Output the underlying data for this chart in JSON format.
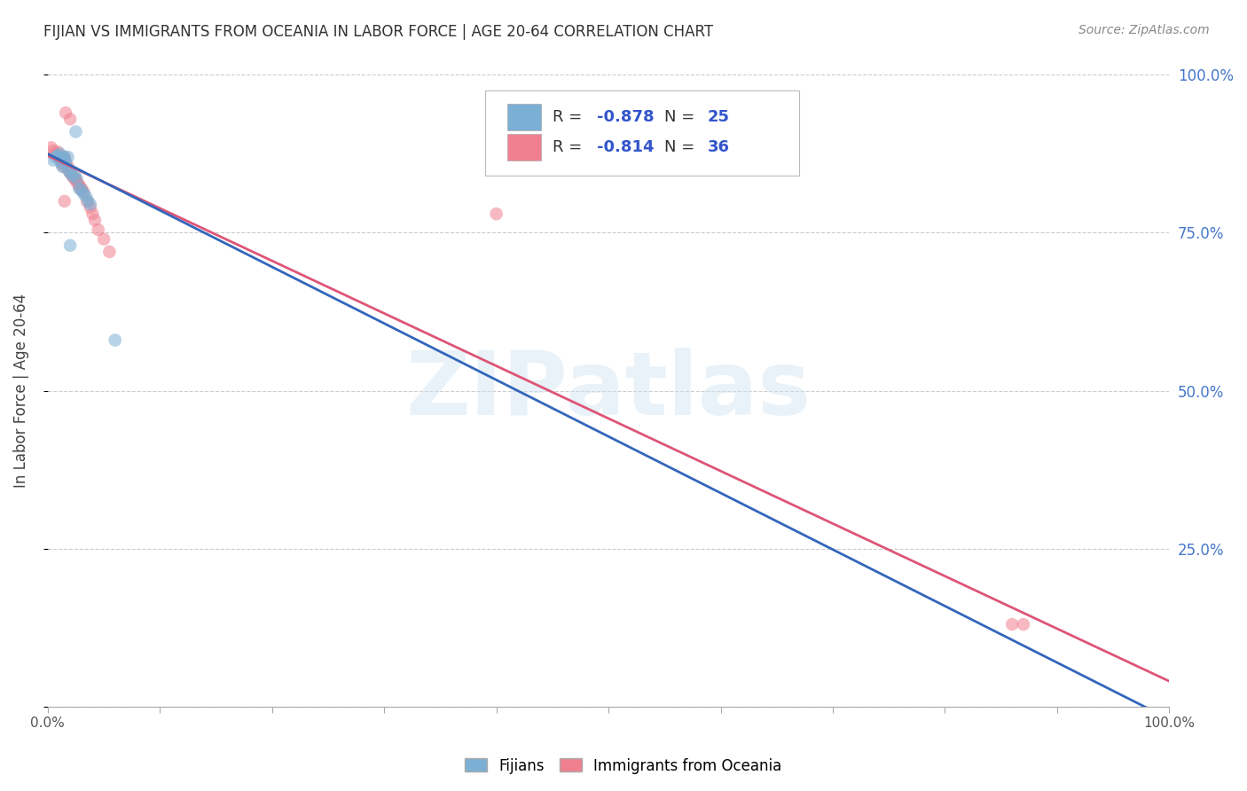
{
  "title": "FIJIAN VS IMMIGRANTS FROM OCEANIA IN LABOR FORCE | AGE 20-64 CORRELATION CHART",
  "source": "Source: ZipAtlas.com",
  "ylabel": "In Labor Force | Age 20-64",
  "watermark": "ZIPatlas",
  "blue_scatter_x": [
    0.005,
    0.007,
    0.009,
    0.01,
    0.011,
    0.012,
    0.013,
    0.014,
    0.015,
    0.016,
    0.018,
    0.02,
    0.022,
    0.024,
    0.026,
    0.028,
    0.03,
    0.032,
    0.034,
    0.036,
    0.038,
    0.06,
    0.018,
    0.025,
    0.02
  ],
  "blue_scatter_y": [
    0.865,
    0.87,
    0.872,
    0.868,
    0.875,
    0.86,
    0.855,
    0.87,
    0.868,
    0.862,
    0.85,
    0.845,
    0.84,
    0.842,
    0.835,
    0.82,
    0.818,
    0.812,
    0.808,
    0.8,
    0.795,
    0.58,
    0.87,
    0.91,
    0.73
  ],
  "pink_scatter_x": [
    0.003,
    0.005,
    0.007,
    0.009,
    0.01,
    0.011,
    0.012,
    0.013,
    0.014,
    0.015,
    0.016,
    0.018,
    0.019,
    0.02,
    0.022,
    0.024,
    0.026,
    0.028,
    0.03,
    0.032,
    0.035,
    0.038,
    0.04,
    0.042,
    0.045,
    0.05,
    0.055,
    0.016,
    0.02,
    0.025,
    0.028,
    0.03,
    0.4,
    0.86,
    0.87,
    0.015
  ],
  "pink_scatter_y": [
    0.885,
    0.88,
    0.875,
    0.878,
    0.872,
    0.868,
    0.865,
    0.86,
    0.855,
    0.87,
    0.862,
    0.855,
    0.848,
    0.845,
    0.84,
    0.835,
    0.83,
    0.825,
    0.82,
    0.815,
    0.8,
    0.79,
    0.78,
    0.77,
    0.755,
    0.74,
    0.72,
    0.94,
    0.93,
    0.835,
    0.825,
    0.818,
    0.78,
    0.13,
    0.13,
    0.8
  ],
  "blue_line_y_start": 0.875,
  "blue_line_y_end": -0.02,
  "pink_line_y_start": 0.872,
  "pink_line_y_end": 0.04,
  "xlim": [
    0.0,
    1.0
  ],
  "ylim": [
    0.0,
    1.0
  ],
  "grid_color": "#cccccc",
  "title_color": "#333333",
  "source_color": "#888888",
  "blue_scatter_color": "#7bafd4",
  "pink_scatter_color": "#f08090",
  "blue_line_color": "#3366bb",
  "pink_line_color": "#dd5577",
  "scatter_alpha": 0.55,
  "scatter_size": 110,
  "right_label_color": "#4477cc",
  "legend_R1": "-0.878",
  "legend_N1": "25",
  "legend_R2": "-0.814",
  "legend_N2": "36",
  "legend_text_color": "#333333",
  "legend_num_color": "#3355cc"
}
